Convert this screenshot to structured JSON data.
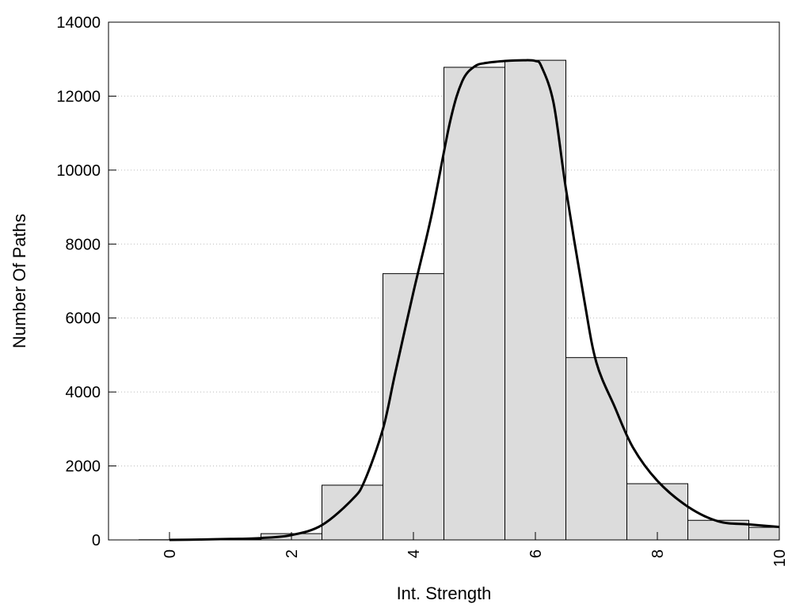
{
  "chart_data": {
    "type": "bar",
    "title": "",
    "xlabel": "Int. Strength",
    "ylabel": "Number Of Paths",
    "xlim": [
      -1,
      10
    ],
    "ylim": [
      0,
      14000
    ],
    "x_ticks": [
      0,
      2,
      4,
      6,
      8,
      10
    ],
    "y_ticks": [
      0,
      2000,
      4000,
      6000,
      8000,
      10000,
      12000,
      14000
    ],
    "grid": "horizontal dotted",
    "bar_width": 1,
    "bars": [
      {
        "x": 0,
        "value": 5
      },
      {
        "x": 1,
        "value": 20
      },
      {
        "x": 2,
        "value": 170
      },
      {
        "x": 3,
        "value": 1480
      },
      {
        "x": 4,
        "value": 7200
      },
      {
        "x": 5,
        "value": 12780
      },
      {
        "x": 6,
        "value": 12970
      },
      {
        "x": 7,
        "value": 4930
      },
      {
        "x": 8,
        "value": 1520
      },
      {
        "x": 9,
        "value": 530
      },
      {
        "x": 10,
        "value": 340
      }
    ],
    "curve": {
      "x": [
        0,
        0.5,
        1,
        1.5,
        2,
        2.5,
        3,
        3.2,
        3.5,
        3.7,
        4,
        4.3,
        4.6,
        4.8,
        5,
        5.2,
        5.5,
        5.8,
        6,
        6.1,
        6.3,
        6.5,
        6.8,
        7,
        7.3,
        7.6,
        8,
        8.5,
        9,
        9.5,
        10
      ],
      "y": [
        0,
        10,
        25,
        50,
        130,
        400,
        1100,
        1600,
        3000,
        4500,
        6700,
        8800,
        11300,
        12400,
        12800,
        12900,
        12950,
        12970,
        12950,
        12800,
        11800,
        9500,
        6500,
        4800,
        3600,
        2500,
        1600,
        900,
        500,
        420,
        350
      ]
    },
    "bar_color": "#dcdcdc",
    "line_color": "#000000"
  }
}
